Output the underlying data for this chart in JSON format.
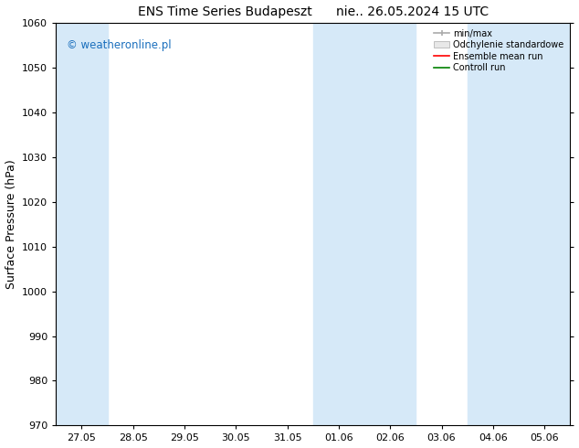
{
  "title": "ENS Time Series Budapeszt      nie.. 26.05.2024 15 UTC",
  "ylabel": "Surface Pressure (hPa)",
  "ylim": [
    970,
    1060
  ],
  "yticks": [
    970,
    980,
    990,
    1000,
    1010,
    1020,
    1030,
    1040,
    1050,
    1060
  ],
  "x_tick_labels": [
    "27.05",
    "28.05",
    "29.05",
    "30.05",
    "31.05",
    "01.06",
    "02.06",
    "03.06",
    "04.06",
    "05.06"
  ],
  "shaded_bands": [
    {
      "xmin": 0,
      "xmax": 1,
      "color": "#d6e9f8"
    },
    {
      "xmin": 5,
      "xmax": 7,
      "color": "#d6e9f8"
    },
    {
      "xmin": 8,
      "xmax": 10,
      "color": "#d6e9f8"
    }
  ],
  "legend_labels": [
    "min/max",
    "Odchylenie standardowe",
    "Ensemble mean run",
    "Controll run"
  ],
  "legend_colors": [
    "#aaaaaa",
    "#d0d0d0",
    "#ff0000",
    "#008000"
  ],
  "watermark": "© weatheronline.pl",
  "watermark_color": "#1a6fbd",
  "background_color": "#ffffff",
  "title_fontsize": 10,
  "axis_fontsize": 9,
  "tick_fontsize": 8,
  "xlim_left": 0,
  "xlim_right": 10
}
